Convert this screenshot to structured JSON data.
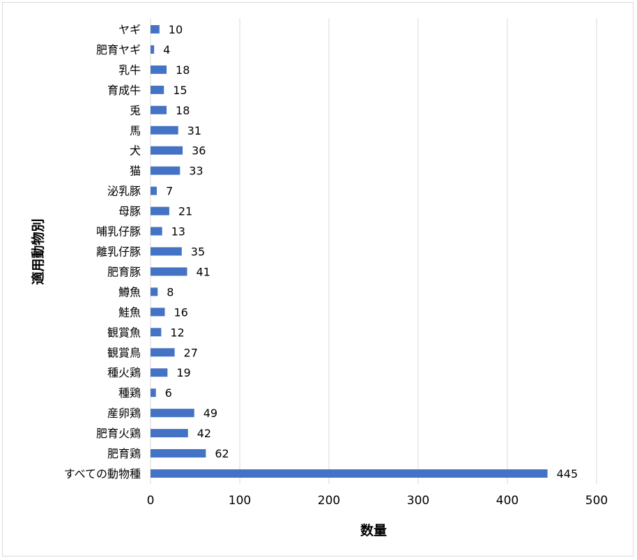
{
  "chart_data": {
    "type": "bar",
    "orientation": "horizontal",
    "xlabel": "数量",
    "ylabel": "適用動物別",
    "xlim": [
      0,
      500
    ],
    "xticks": [
      0,
      100,
      200,
      300,
      400,
      500
    ],
    "grid": "vertical",
    "bar_color": "#4472c4",
    "categories": [
      "ヤギ",
      "肥育ヤギ",
      "乳牛",
      "育成牛",
      "兎",
      "馬",
      "犬",
      "猫",
      "泌乳豚",
      "母豚",
      "哺乳仔豚",
      "離乳仔豚",
      "肥育豚",
      "鱒魚",
      "鮭魚",
      "観賞魚",
      "観賞鳥",
      "種火鶏",
      "種鶏",
      "産卵鶏",
      "肥育火鶏",
      "肥育鶏",
      "すべての動物種"
    ],
    "values": [
      10,
      4,
      18,
      15,
      18,
      31,
      36,
      33,
      7,
      21,
      13,
      35,
      41,
      8,
      16,
      12,
      27,
      19,
      6,
      49,
      42,
      62,
      445
    ]
  }
}
